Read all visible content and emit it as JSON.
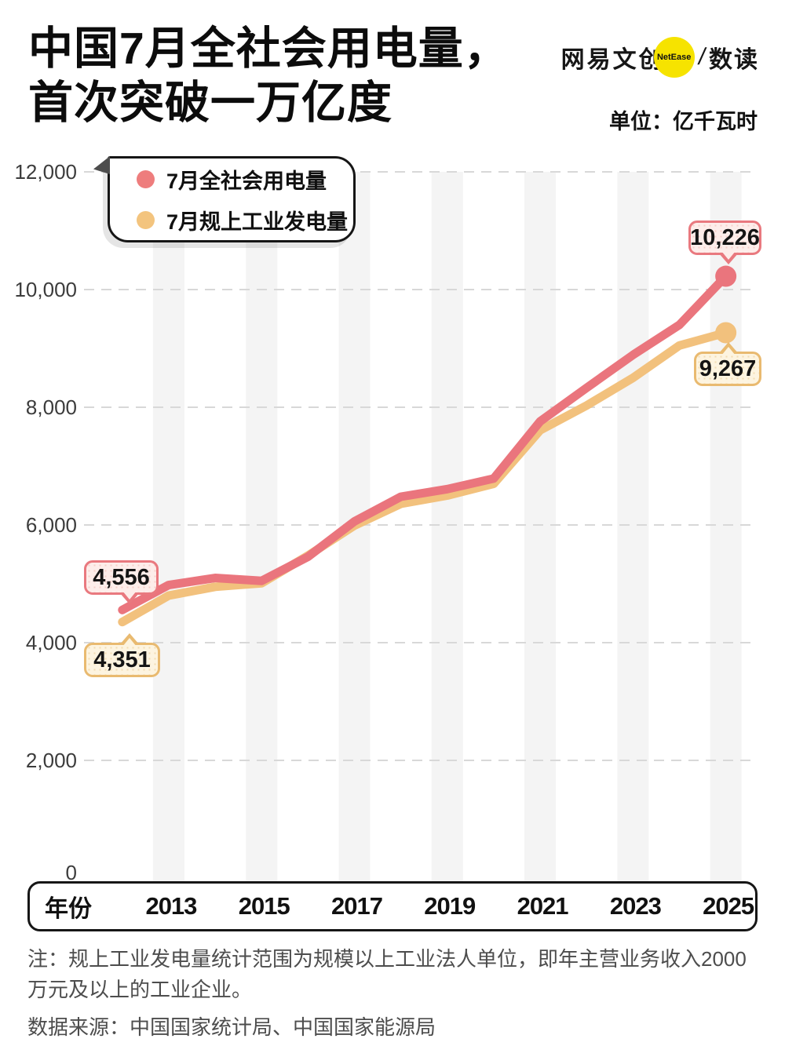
{
  "header": {
    "title_line1": "中国7月全社会用电量，",
    "title_line2": "首次突破一万亿度",
    "unit_label": "单位：亿千瓦时",
    "logo": {
      "brand": "网易文创",
      "netease": "NetEase",
      "separator": "/",
      "product": "数读"
    }
  },
  "legend": {
    "items": [
      {
        "label": "7月全社会用电量",
        "color": "#ee7d7d"
      },
      {
        "label": "7月规上工业发电量",
        "color": "#f3c47e"
      }
    ]
  },
  "chart_data": {
    "type": "line",
    "title": "中国7月全社会用电量，首次突破一万亿度",
    "unit": "亿千瓦时",
    "x": [
      2012,
      2013,
      2014,
      2015,
      2016,
      2017,
      2018,
      2019,
      2020,
      2021,
      2022,
      2023,
      2024,
      2025
    ],
    "series": [
      {
        "name": "7月全社会用电量",
        "color": "#ea757d",
        "values": [
          4556,
          4980,
          5100,
          5050,
          5460,
          6060,
          6480,
          6610,
          6790,
          7760,
          8330,
          8890,
          9400,
          10226
        ]
      },
      {
        "name": "7月规上工业发电量",
        "color": "#f2c17d",
        "values": [
          4351,
          4800,
          4950,
          5010,
          5480,
          5990,
          6360,
          6500,
          6700,
          7610,
          8030,
          8500,
          9050,
          9267
        ]
      }
    ],
    "ylim": [
      0,
      12000
    ],
    "y_ticks": [
      {
        "label": "12,000",
        "value": 12000
      },
      {
        "label": "10,000",
        "value": 10000
      },
      {
        "label": "8,000",
        "value": 8000
      },
      {
        "label": "6,000",
        "value": 6000
      },
      {
        "label": "4,000",
        "value": 4000
      },
      {
        "label": "2,000",
        "value": 2000
      },
      {
        "label": "0",
        "value": 0
      }
    ],
    "x_axis_title": "年份",
    "x_ticks": [
      {
        "label": "2013",
        "value": 2013
      },
      {
        "label": "2015",
        "value": 2015
      },
      {
        "label": "2017",
        "value": 2017
      },
      {
        "label": "2019",
        "value": 2019
      },
      {
        "label": "2021",
        "value": 2021
      },
      {
        "label": "2023",
        "value": 2023
      },
      {
        "label": "2025",
        "value": 2025
      }
    ],
    "grid": "horizontal dashed",
    "legend_position": "top-left",
    "annotations": [
      {
        "text": "4,556",
        "series": "7月全社会用电量",
        "x": 2012,
        "value": 4556
      },
      {
        "text": "4,351",
        "series": "7月规上工业发电量",
        "x": 2012,
        "value": 4351
      },
      {
        "text": "10,226",
        "series": "7月全社会用电量",
        "x": 2025,
        "value": 10226
      },
      {
        "text": "9,267",
        "series": "7月规上工业发电量",
        "x": 2025,
        "value": 9267
      }
    ]
  },
  "notes": {
    "note_line": "注：规上工业发电量统计范围为规模以上工业法人单位，即年主营业务收入2000万元及以上的工业企业。",
    "source_line": "数据来源：中国国家统计局、中国国家能源局"
  },
  "colors": {
    "series_red": "#ea757d",
    "series_gold": "#f2c17d",
    "stripe": "#f4f4f4",
    "gridline": "#d8d8d8",
    "logo_yellow": "#f6e300",
    "text_dark": "#141414",
    "note_gray": "#4d4d4d"
  }
}
